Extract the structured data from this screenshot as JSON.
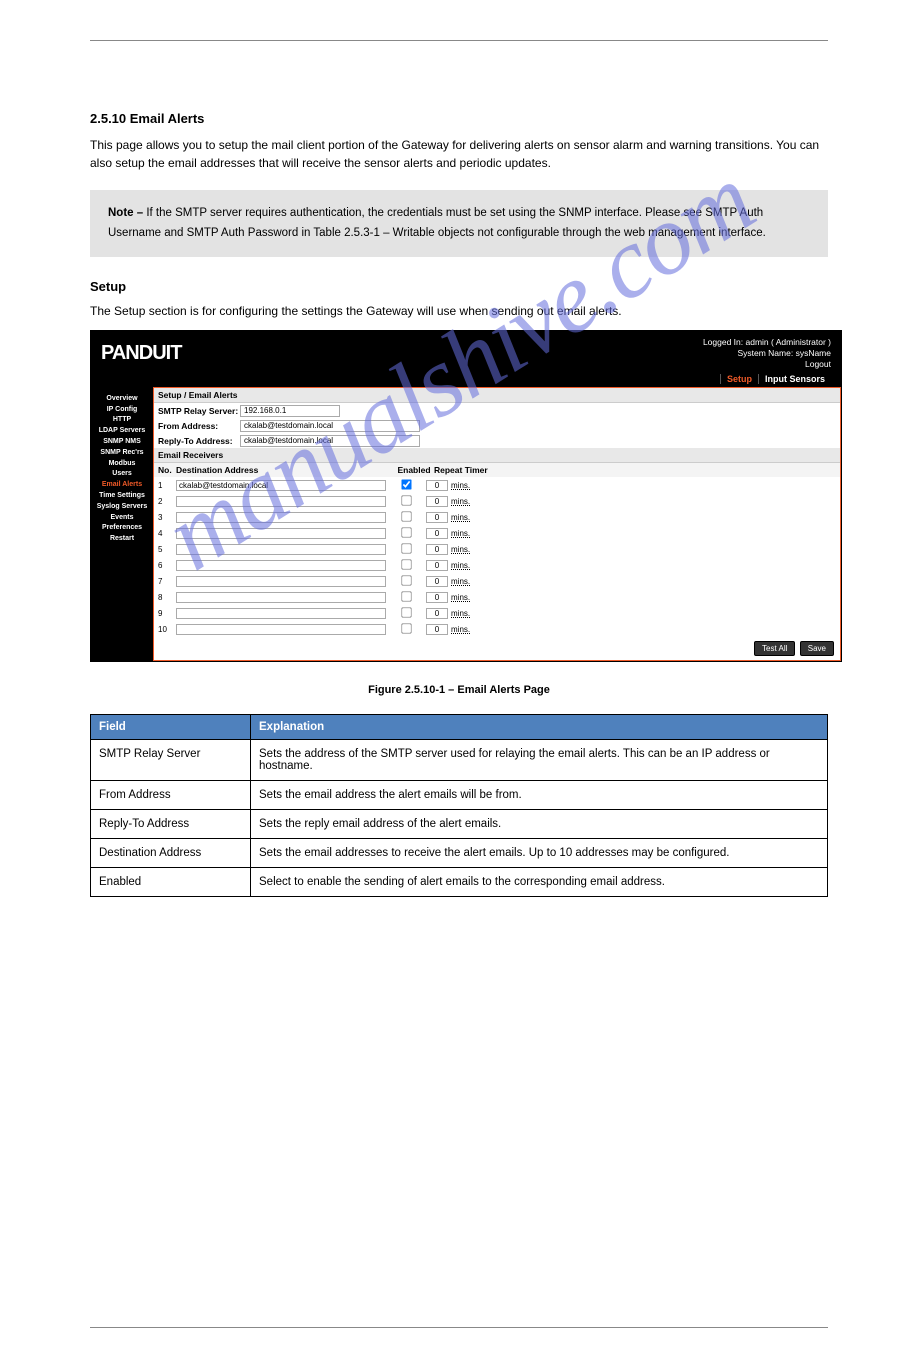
{
  "page": {
    "section_number": "2.5.10 Email Alerts",
    "intro": "This page allows you to setup the mail client portion of the Gateway for delivering alerts on sensor alarm and warning transitions. You can also setup the email addresses that will receive the sensor alerts and periodic updates.",
    "note_label": "Note – ",
    "note_text": "If the SMTP server requires authentication, the credentials must be set using the SNMP interface. Please see SMTP Auth Username and SMTP Auth Password in Table 2.5.3-1 – Writable objects not configurable through the web management interface.",
    "setup_header": "Setup",
    "setup_text": "The Setup section is for configuring the settings the Gateway will use when sending out email alerts."
  },
  "screenshot": {
    "header": {
      "login_line": "Logged In:  admin ( Administrator )",
      "sysname_line": "System Name: sysName",
      "logout": "Logout",
      "tab_active": "Setup",
      "tab_inactive": "Input Sensors"
    },
    "sidebar": {
      "items": [
        {
          "label": "Overview",
          "active": false
        },
        {
          "label": "IP Config",
          "active": false
        },
        {
          "label": "HTTP",
          "active": false
        },
        {
          "label": "LDAP Servers",
          "active": false
        },
        {
          "label": "SNMP NMS",
          "active": false
        },
        {
          "label": "SNMP Rec'rs",
          "active": false
        },
        {
          "label": "Modbus",
          "active": false
        },
        {
          "label": "Users",
          "active": false
        },
        {
          "label": "Email Alerts",
          "active": true
        },
        {
          "label": "Time Settings",
          "active": false
        },
        {
          "label": "Syslog Servers",
          "active": false
        },
        {
          "label": "Events",
          "active": false
        },
        {
          "label": "Preferences",
          "active": false
        },
        {
          "label": "Restart",
          "active": false
        }
      ]
    },
    "form": {
      "title": "Setup / Email Alerts",
      "smtp_label": "SMTP Relay Server:",
      "smtp_value": "192.168.0.1",
      "from_label": "From Address:",
      "from_value": "ckalab@testdomain.local",
      "reply_label": "Reply-To Address:",
      "reply_value": "ckalab@testdomain.local",
      "receivers_head": "Email Receivers",
      "col_no": "No.",
      "col_dest": "Destination Address",
      "col_en": "Enabled",
      "col_rt": "Repeat Timer",
      "mins_label": "mins.",
      "rows": [
        {
          "no": "1",
          "dest": "ckalab@testdomain.local",
          "enabled": true,
          "rt": "0"
        },
        {
          "no": "2",
          "dest": "",
          "enabled": false,
          "rt": "0"
        },
        {
          "no": "3",
          "dest": "",
          "enabled": false,
          "rt": "0"
        },
        {
          "no": "4",
          "dest": "",
          "enabled": false,
          "rt": "0"
        },
        {
          "no": "5",
          "dest": "",
          "enabled": false,
          "rt": "0"
        },
        {
          "no": "6",
          "dest": "",
          "enabled": false,
          "rt": "0"
        },
        {
          "no": "7",
          "dest": "",
          "enabled": false,
          "rt": "0"
        },
        {
          "no": "8",
          "dest": "",
          "enabled": false,
          "rt": "0"
        },
        {
          "no": "9",
          "dest": "",
          "enabled": false,
          "rt": "0"
        },
        {
          "no": "10",
          "dest": "",
          "enabled": false,
          "rt": "0"
        }
      ],
      "test_all": "Test All",
      "save": "Save"
    }
  },
  "figure_caption": "Figure 2.5.10-1 – Email Alerts Page",
  "table": {
    "h1": "Field",
    "h2": "Explanation",
    "rows": [
      {
        "f": "SMTP Relay Server",
        "e": "Sets the address of the SMTP server used for relaying the email alerts. This can be an IP address or hostname."
      },
      {
        "f": "From Address",
        "e": "Sets the email address the alert emails will be from."
      },
      {
        "f": "Reply-To Address",
        "e": "Sets the reply email address of the alert emails."
      },
      {
        "f": "Destination Address",
        "e": "Sets the email addresses to receive the alert emails. Up to 10 addresses may be configured."
      },
      {
        "f": "Enabled",
        "e": "Select to enable the sending of alert emails to the corresponding email address."
      }
    ]
  },
  "watermark": "manualshive.com"
}
